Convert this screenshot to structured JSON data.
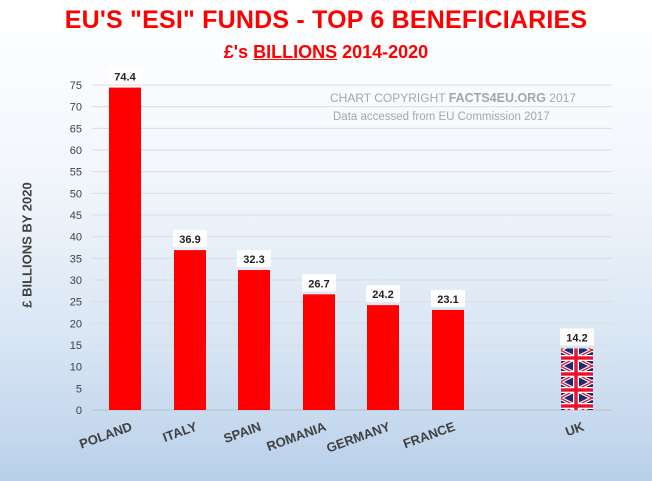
{
  "header": {
    "title": "EU'S \"ESI\" FUNDS - TOP 6 BENEFICIARIES",
    "subtitle_prefix": "£'s ",
    "subtitle_emph": "BILLIONS",
    "subtitle_suffix": " 2014-2020"
  },
  "notes": {
    "copyright_prefix": "CHART COPYRIGHT ",
    "copyright_brand": "FACTS4EU.ORG",
    "copyright_year": " 2017",
    "accessed": "Data accessed from EU Commission 2017"
  },
  "chart_data": {
    "type": "bar",
    "title": "EU'S \"ESI\" FUNDS - TOP 6 BENEFICIARIES",
    "subtitle": "£'s BILLIONS 2014-2020",
    "ylabel": "£ BILLIONS BY 2020",
    "xlabel": "",
    "categories": [
      "POLAND",
      "ITALY",
      "SPAIN",
      "ROMANIA",
      "GERMANY",
      "FRANCE",
      "UK"
    ],
    "values": [
      74.4,
      36.9,
      32.3,
      26.7,
      24.2,
      23.1,
      14.2
    ],
    "data_labels": [
      "74.4",
      "36.9",
      "32.3",
      "26.7",
      "24.2",
      "23.1",
      "14.2"
    ],
    "ylim": [
      0,
      75
    ],
    "yticks": [
      0,
      5,
      10,
      15,
      20,
      25,
      30,
      35,
      40,
      45,
      50,
      55,
      60,
      65,
      70,
      75
    ],
    "grid": true,
    "legend": "none",
    "colors": {
      "bar": "#ff0000",
      "uk_flag_blue": "#1f2a6b",
      "uk_flag_red": "#e8112d",
      "title": "#ff0000"
    }
  }
}
